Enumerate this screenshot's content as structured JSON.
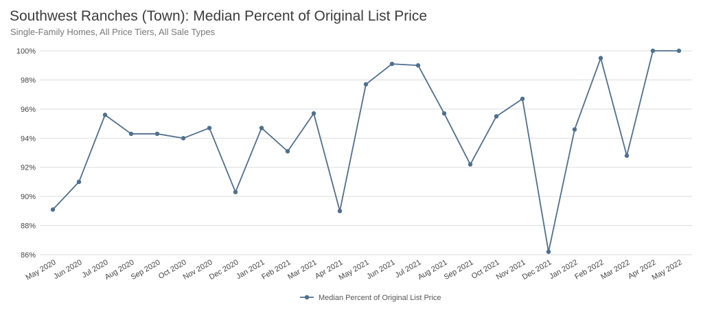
{
  "chart_data": {
    "type": "line",
    "title": "Southwest Ranches (Town): Median Percent of Original List Price",
    "subtitle": "Single-Family Homes, All Price Tiers, All Sale Types",
    "categories": [
      "May 2020",
      "Jun 2020",
      "Jul 2020",
      "Aug 2020",
      "Sep 2020",
      "Oct 2020",
      "Nov 2020",
      "Dec 2020",
      "Jan 2021",
      "Feb 2021",
      "Mar 2021",
      "Apr 2021",
      "May 2021",
      "Jun 2021",
      "Jul 2021",
      "Aug 2021",
      "Sep 2021",
      "Oct 2021",
      "Nov 2021",
      "Dec 2021",
      "Jan 2022",
      "Feb 2022",
      "Mar 2022",
      "Apr 2022",
      "May 2022"
    ],
    "series": [
      {
        "name": "Median Percent of Original List Price",
        "color": "#4e6f8e",
        "values": [
          89.1,
          91.0,
          95.6,
          94.3,
          94.3,
          94.0,
          94.7,
          90.3,
          94.7,
          93.1,
          95.7,
          89.0,
          97.7,
          99.1,
          99.0,
          95.7,
          92.2,
          95.5,
          96.7,
          86.2,
          94.6,
          99.5,
          92.8,
          100.0,
          100.0
        ]
      }
    ],
    "y_ticks": [
      "86%",
      "88%",
      "90%",
      "92%",
      "94%",
      "96%",
      "98%",
      "100%"
    ],
    "ylim": [
      86,
      100
    ],
    "grid": true,
    "legend_position": "bottom-center",
    "xlabel": "",
    "ylabel": ""
  }
}
